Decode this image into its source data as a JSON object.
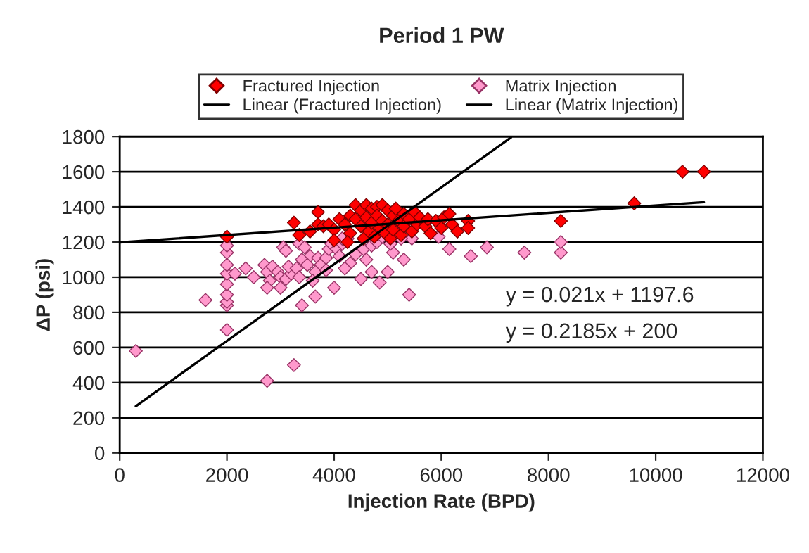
{
  "chart_data": {
    "type": "scatter",
    "title": "Period 1 PW",
    "xlabel": "Injection Rate (BPD)",
    "ylabel": "ΔP (psi)",
    "xlim": [
      0,
      12000
    ],
    "xticks": [
      0,
      2000,
      4000,
      6000,
      8000,
      10000,
      12000
    ],
    "ylim": [
      0,
      1800
    ],
    "yticks": [
      0,
      200,
      400,
      600,
      800,
      1000,
      1200,
      1400,
      1600,
      1800
    ],
    "grid": "y",
    "legend": "top",
    "annotations": [
      "y = 0.021x + 1197.6",
      "y = 0.2185x + 200"
    ],
    "series": [
      {
        "name": "Fractured Injection",
        "color": "#ff0000",
        "marker": "diamond",
        "x": [
          2000,
          3250,
          3350,
          3550,
          3700,
          3700,
          3800,
          3900,
          4000,
          4100,
          4200,
          4300,
          4300,
          4400,
          4400,
          4500,
          4500,
          4550,
          4600,
          4600,
          4650,
          4700,
          4700,
          4750,
          4800,
          4800,
          4850,
          4900,
          4900,
          4950,
          5000,
          5000,
          5050,
          5100,
          5100,
          5150,
          5200,
          5250,
          5300,
          5300,
          5400,
          5450,
          5500,
          5550,
          5600,
          5700,
          5750,
          5800,
          5900,
          6000,
          6050,
          6150,
          6200,
          6300,
          6500,
          6500,
          8230,
          9600,
          10500,
          10900,
          4250,
          4000
        ],
        "values": [
          1230,
          1310,
          1240,
          1260,
          1370,
          1300,
          1290,
          1300,
          1270,
          1330,
          1300,
          1350,
          1250,
          1410,
          1330,
          1380,
          1290,
          1220,
          1410,
          1340,
          1260,
          1390,
          1310,
          1230,
          1400,
          1350,
          1280,
          1410,
          1320,
          1250,
          1380,
          1300,
          1220,
          1350,
          1270,
          1390,
          1320,
          1240,
          1360,
          1290,
          1330,
          1260,
          1370,
          1300,
          1340,
          1290,
          1330,
          1250,
          1320,
          1280,
          1340,
          1360,
          1300,
          1260,
          1320,
          1280,
          1320,
          1420,
          1600,
          1600,
          1200,
          1210
        ]
      },
      {
        "name": "Matrix Injection",
        "color": "#ff99cc",
        "marker": "diamond",
        "x": [
          300,
          1600,
          2000,
          2000,
          2000,
          2000,
          2000,
          2000,
          2000,
          2000,
          2000,
          2150,
          2350,
          2500,
          2750,
          3250,
          3400,
          3650,
          4000,
          4500,
          4850,
          4700,
          5000,
          5400,
          5300,
          5100,
          5450,
          5950,
          6150,
          6550,
          6850,
          7550,
          8230,
          8230,
          2700,
          2750,
          2850,
          2950,
          3000,
          3100,
          3200,
          3150,
          2800,
          2750,
          3000,
          3050,
          3100,
          3350,
          3450,
          3550,
          3400,
          3500,
          3700,
          3750,
          3650,
          3850,
          3850,
          3900,
          3950,
          4050,
          4150,
          4250,
          4300,
          4400,
          4550,
          4700,
          4800,
          4900,
          5050,
          5250,
          4150,
          3300,
          3600,
          3350,
          4600,
          4200,
          4100
        ],
        "values": [
          580,
          870,
          700,
          840,
          860,
          900,
          960,
          1020,
          1070,
          1140,
          1180,
          1020,
          1050,
          1000,
          410,
          500,
          840,
          890,
          940,
          990,
          970,
          1030,
          1030,
          900,
          1100,
          1140,
          1220,
          1230,
          1160,
          1120,
          1170,
          1140,
          1140,
          1200,
          1070,
          1030,
          1060,
          1030,
          1000,
          990,
          1020,
          1060,
          980,
          940,
          940,
          1170,
          1150,
          1190,
          1170,
          1120,
          1100,
          1070,
          1110,
          1070,
          1030,
          1040,
          1110,
          1160,
          1190,
          1160,
          1190,
          1220,
          1080,
          1130,
          1160,
          1180,
          1200,
          1230,
          1190,
          1220,
          1220,
          1050,
          980,
          1000,
          1100,
          1050,
          1120
        ]
      },
      {
        "name": "Linear (Fractured Injection)",
        "color": "#000000",
        "type": "line",
        "x": [
          0,
          10900
        ],
        "values": [
          1198,
          1427
        ]
      },
      {
        "name": "Linear (Matrix Injection)",
        "color": "#000000",
        "type": "line",
        "x": [
          300,
          7300
        ],
        "values": [
          266,
          1795
        ]
      }
    ]
  }
}
